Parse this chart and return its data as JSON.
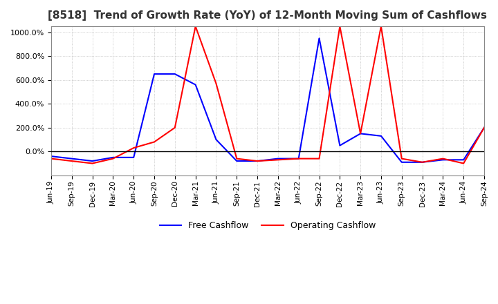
{
  "title": "[8518]  Trend of Growth Rate (YoY) of 12-Month Moving Sum of Cashflows",
  "title_fontsize": 11,
  "ylim": [
    -200,
    1050
  ],
  "ytick_values": [
    0,
    200,
    400,
    600,
    800,
    1000
  ],
  "background_color": "#ffffff",
  "grid_color": "#aaaaaa",
  "operating_color": "#ff0000",
  "free_color": "#0000ff",
  "legend_labels": [
    "Operating Cashflow",
    "Free Cashflow"
  ],
  "x_labels": [
    "Jun-19",
    "Sep-19",
    "Dec-19",
    "Mar-20",
    "Jun-20",
    "Sep-20",
    "Dec-20",
    "Mar-21",
    "Jun-21",
    "Sep-21",
    "Dec-21",
    "Mar-22",
    "Jun-22",
    "Sep-22",
    "Dec-22",
    "Mar-23",
    "Jun-23",
    "Sep-23",
    "Dec-23",
    "Mar-24",
    "Jun-24",
    "Sep-24"
  ],
  "operating_cashflow": [
    -60,
    -80,
    -100,
    -60,
    30,
    80,
    200,
    1050,
    570,
    -60,
    -80,
    -70,
    -60,
    -60,
    1050,
    150,
    1050,
    -60,
    -90,
    -60,
    -100,
    200
  ],
  "free_cashflow": [
    -40,
    -60,
    -80,
    -50,
    -50,
    650,
    650,
    560,
    100,
    -80,
    -80,
    -60,
    -60,
    950,
    50,
    150,
    130,
    -90,
    -90,
    -70,
    -70,
    200
  ]
}
